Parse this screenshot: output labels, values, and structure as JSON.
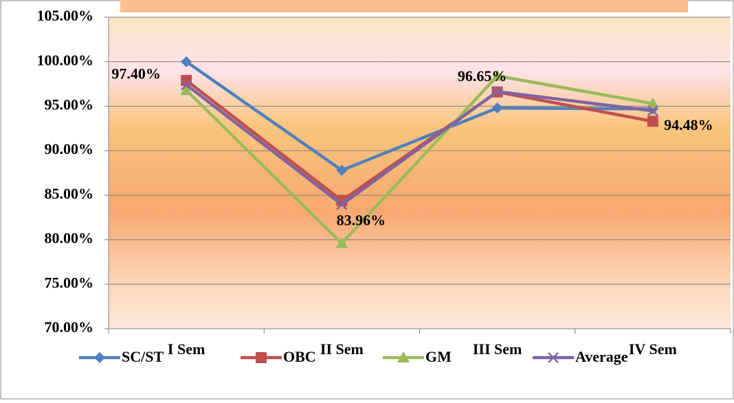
{
  "chart_data": {
    "type": "line",
    "categories": [
      "I Sem",
      "II Sem",
      "III Sem",
      "IV Sem"
    ],
    "series": [
      {
        "name": "SC/ST",
        "color": "#4f81bd",
        "marker": "diamond",
        "values": [
          100,
          87.8,
          94.8,
          94.7
        ]
      },
      {
        "name": "OBC",
        "color": "#c0504d",
        "marker": "square",
        "values": [
          97.9,
          84.4,
          96.6,
          93.3
        ]
      },
      {
        "name": "GM",
        "color": "#9bbb59",
        "marker": "triangle",
        "values": [
          96.8,
          79.6,
          98.4,
          95.3
        ]
      },
      {
        "name": "Average",
        "color": "#8064a2",
        "marker": "x",
        "values": [
          97.4,
          83.96,
          96.65,
          94.48
        ],
        "value_labels": [
          "97.40%",
          "83.96%",
          "96.65%",
          "94.48%"
        ]
      }
    ],
    "ylim": [
      70,
      105
    ],
    "yticks": [
      {
        "value": 70,
        "label": "70.00%"
      },
      {
        "value": 75,
        "label": "75.00%"
      },
      {
        "value": 80,
        "label": "80.00%"
      },
      {
        "value": 85,
        "label": "85.00%"
      },
      {
        "value": 90,
        "label": "90.00%"
      },
      {
        "value": 95,
        "label": "95.00%"
      },
      {
        "value": 100,
        "label": "100.00%"
      },
      {
        "value": 105,
        "label": "105.00%"
      }
    ],
    "grid": true,
    "legend": "bottom"
  }
}
